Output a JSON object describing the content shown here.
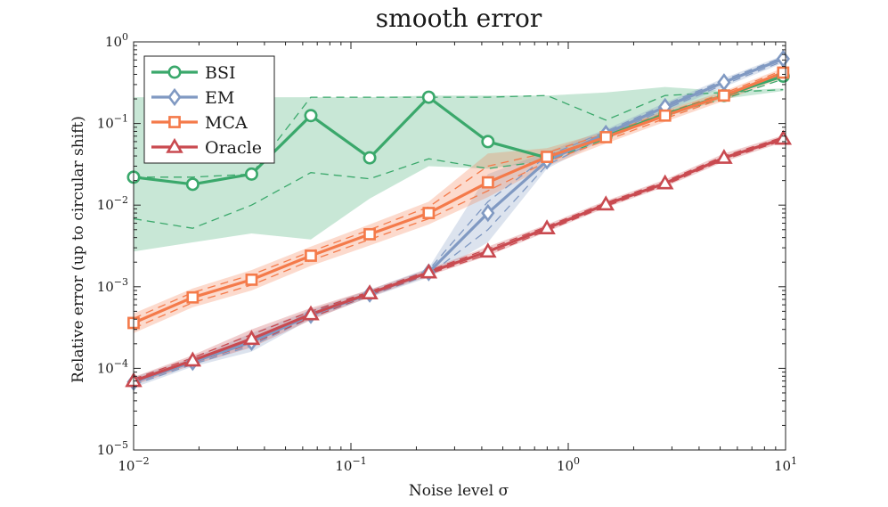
{
  "chart_data": {
    "type": "line",
    "title": "smooth error",
    "xlabel": "Noise level σ",
    "ylabel": "Relative error (up to circular shift)",
    "xscale": "log",
    "yscale": "log",
    "xlim": [
      0.01,
      10
    ],
    "ylim": [
      1e-05,
      1
    ],
    "grid": false,
    "legend_position": "top-left",
    "x_ticks": [
      {
        "value": 0.01,
        "base": "10",
        "exp": "−2"
      },
      {
        "value": 0.1,
        "base": "10",
        "exp": "−1"
      },
      {
        "value": 1,
        "base": "10",
        "exp": "0"
      },
      {
        "value": 10,
        "base": "10",
        "exp": "1"
      }
    ],
    "y_ticks": [
      {
        "value": 1e-05,
        "base": "10",
        "exp": "−5"
      },
      {
        "value": 0.0001,
        "base": "10",
        "exp": "−4"
      },
      {
        "value": 0.001,
        "base": "10",
        "exp": "−3"
      },
      {
        "value": 0.01,
        "base": "10",
        "exp": "−2"
      },
      {
        "value": 0.1,
        "base": "10",
        "exp": "−1"
      },
      {
        "value": 1,
        "base": "10",
        "exp": "0"
      }
    ],
    "x": [
      0.01,
      0.0187,
      0.0349,
      0.0654,
      0.122,
      0.228,
      0.427,
      0.798,
      1.49,
      2.79,
      5.21,
      9.75
    ],
    "series": [
      {
        "name": "BSI",
        "color": "#3aa86b",
        "marker": "circle",
        "values": [
          0.022,
          0.018,
          0.024,
          0.125,
          0.038,
          0.21,
          0.06,
          0.038,
          0.07,
          0.13,
          0.22,
          0.38
        ],
        "upper": [
          0.21,
          0.21,
          0.21,
          0.21,
          0.21,
          0.22,
          0.22,
          0.22,
          0.24,
          0.28,
          0.25,
          0.27
        ],
        "lower": [
          0.0027,
          0.0035,
          0.0045,
          0.0038,
          0.012,
          0.03,
          0.028,
          0.035,
          0.065,
          0.12,
          0.2,
          0.25
        ],
        "dash_upper": [
          0.022,
          0.022,
          0.024,
          0.21,
          0.21,
          0.21,
          0.21,
          0.22,
          0.11,
          0.22,
          0.24,
          0.26
        ],
        "dash_lower": [
          0.0068,
          0.0052,
          0.01,
          0.025,
          0.021,
          0.037,
          0.028,
          0.035,
          0.065,
          0.13,
          0.2,
          0.35
        ]
      },
      {
        "name": "EM",
        "color": "#8099c2",
        "marker": "diamond",
        "values": [
          6.8e-05,
          0.00012,
          0.00021,
          0.00045,
          0.00082,
          0.0015,
          0.008,
          0.035,
          0.075,
          0.16,
          0.32,
          0.62
        ],
        "upper": [
          7.8e-05,
          0.000135,
          0.00027,
          0.00052,
          0.00092,
          0.0017,
          0.024,
          0.045,
          0.085,
          0.18,
          0.36,
          0.68
        ],
        "lower": [
          5.8e-05,
          0.000105,
          0.00016,
          0.0004,
          0.00074,
          0.0013,
          0.0035,
          0.028,
          0.065,
          0.14,
          0.28,
          0.55
        ],
        "dash_upper": [
          7.2e-05,
          0.000125,
          0.00023,
          0.00048,
          0.00086,
          0.0016,
          0.011,
          0.04,
          0.08,
          0.17,
          0.34,
          0.65
        ],
        "dash_lower": [
          6.3e-05,
          0.000112,
          0.00019,
          0.00042,
          0.00078,
          0.0014,
          0.005,
          0.031,
          0.07,
          0.15,
          0.3,
          0.58
        ]
      },
      {
        "name": "MCA",
        "color": "#f47a4a",
        "marker": "square",
        "values": [
          0.00036,
          0.00074,
          0.00122,
          0.0024,
          0.0044,
          0.008,
          0.019,
          0.039,
          0.068,
          0.125,
          0.22,
          0.42
        ],
        "upper": [
          0.00047,
          0.00095,
          0.0016,
          0.0031,
          0.0058,
          0.011,
          0.043,
          0.05,
          0.08,
          0.145,
          0.25,
          0.48
        ],
        "lower": [
          0.00027,
          0.00056,
          0.0009,
          0.0018,
          0.0032,
          0.0058,
          0.0125,
          0.03,
          0.057,
          0.105,
          0.19,
          0.36
        ],
        "dash_upper": [
          0.00041,
          0.00085,
          0.0014,
          0.0027,
          0.005,
          0.0095,
          0.03,
          0.044,
          0.075,
          0.135,
          0.235,
          0.45
        ],
        "dash_lower": [
          0.00031,
          0.00064,
          0.00105,
          0.0021,
          0.0038,
          0.0068,
          0.015,
          0.034,
          0.062,
          0.115,
          0.205,
          0.39
        ]
      },
      {
        "name": "Oracle",
        "color": "#c94a50",
        "marker": "triangle",
        "values": [
          7e-05,
          0.000125,
          0.00023,
          0.00046,
          0.00083,
          0.0015,
          0.0027,
          0.0052,
          0.0102,
          0.0185,
          0.038,
          0.065
        ],
        "upper": [
          7.8e-05,
          0.000145,
          0.0003,
          0.00055,
          0.00092,
          0.00165,
          0.0031,
          0.0058,
          0.0113,
          0.0205,
          0.043,
          0.072
        ],
        "lower": [
          6.2e-05,
          0.00011,
          0.00018,
          0.00039,
          0.00075,
          0.00136,
          0.0024,
          0.0047,
          0.0093,
          0.0168,
          0.034,
          0.059
        ],
        "dash_upper": [
          7.4e-05,
          0.000135,
          0.00026,
          0.0005,
          0.00087,
          0.00157,
          0.0029,
          0.0055,
          0.0107,
          0.0195,
          0.04,
          0.068
        ],
        "dash_lower": [
          6.6e-05,
          0.000117,
          0.0002,
          0.00042,
          0.00079,
          0.00143,
          0.0025,
          0.0049,
          0.0097,
          0.0176,
          0.036,
          0.062
        ]
      }
    ]
  }
}
